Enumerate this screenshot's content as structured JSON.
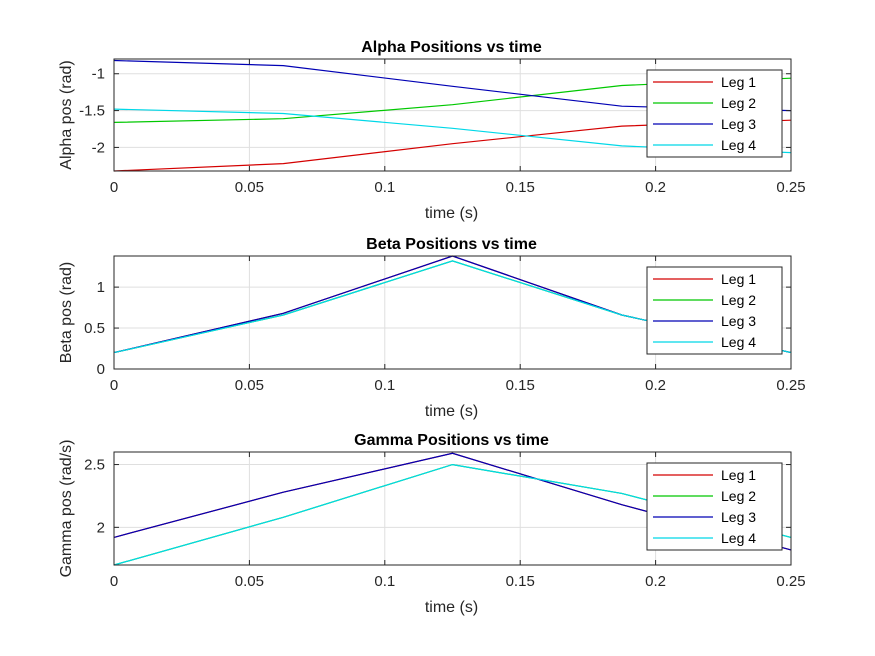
{
  "chart_data": [
    {
      "type": "line",
      "title": "Alpha Positions vs time",
      "xlabel": "time (s)",
      "ylabel": "Alpha pos (rad)",
      "xlim": [
        0,
        0.25
      ],
      "ylim": [
        -2.32,
        -0.8
      ],
      "xticks": [
        0,
        0.05,
        0.1,
        0.15,
        0.2,
        0.25
      ],
      "xticklabels": [
        "0",
        "0.05",
        "0.1",
        "0.15",
        "0.2",
        "0.25"
      ],
      "yticks": [
        -2,
        -1.5,
        -1
      ],
      "yticklabels": [
        "-2",
        "-1.5",
        "-1"
      ],
      "grid": true,
      "legend_position": "top-right",
      "series": [
        {
          "name": "Leg 1",
          "color": "#d40000",
          "x": [
            0,
            0.0625,
            0.125,
            0.1875,
            0.25
          ],
          "y": [
            -2.32,
            -2.22,
            -1.95,
            -1.71,
            -1.63
          ]
        },
        {
          "name": "Leg 2",
          "color": "#00c800",
          "x": [
            0,
            0.0625,
            0.125,
            0.1875,
            0.25
          ],
          "y": [
            -1.66,
            -1.61,
            -1.42,
            -1.16,
            -1.06
          ]
        },
        {
          "name": "Leg 3",
          "color": "#0000b4",
          "x": [
            0,
            0.0625,
            0.125,
            0.1875,
            0.25
          ],
          "y": [
            -0.82,
            -0.89,
            -1.17,
            -1.44,
            -1.5
          ]
        },
        {
          "name": "Leg 4",
          "color": "#00d8e8",
          "x": [
            0,
            0.0625,
            0.125,
            0.1875,
            0.25
          ],
          "y": [
            -1.48,
            -1.54,
            -1.74,
            -1.98,
            -2.07
          ]
        }
      ]
    },
    {
      "type": "line",
      "title": "Beta Positions vs time",
      "xlabel": "time (s)",
      "ylabel": "Beta pos (rad)",
      "xlim": [
        0,
        0.25
      ],
      "ylim": [
        0,
        1.38
      ],
      "xticks": [
        0,
        0.05,
        0.1,
        0.15,
        0.2,
        0.25
      ],
      "xticklabels": [
        "0",
        "0.05",
        "0.1",
        "0.15",
        "0.2",
        "0.25"
      ],
      "yticks": [
        0,
        0.5,
        1
      ],
      "yticklabels": [
        "0",
        "0.5",
        "1"
      ],
      "grid": true,
      "legend_position": "top-right",
      "series": [
        {
          "name": "Leg 1",
          "color": "#d40000",
          "x": [
            0,
            0.0625,
            0.125,
            0.1875,
            0.25
          ],
          "y": [
            0.2,
            0.68,
            1.38,
            0.66,
            0.2
          ]
        },
        {
          "name": "Leg 2",
          "color": "#00c800",
          "x": [
            0,
            0.0625,
            0.125,
            0.1875,
            0.25
          ],
          "y": [
            0.2,
            0.66,
            1.32,
            0.66,
            0.2
          ]
        },
        {
          "name": "Leg 3",
          "color": "#0000b4",
          "x": [
            0,
            0.0625,
            0.125,
            0.1875,
            0.25
          ],
          "y": [
            0.2,
            0.68,
            1.38,
            0.66,
            0.2
          ]
        },
        {
          "name": "Leg 4",
          "color": "#00d8e8",
          "x": [
            0,
            0.0625,
            0.125,
            0.1875,
            0.25
          ],
          "y": [
            0.2,
            0.66,
            1.32,
            0.66,
            0.2
          ]
        }
      ]
    },
    {
      "type": "line",
      "title": "Gamma Positions vs time",
      "xlabel": "time (s)",
      "ylabel": "Gamma pos (rad/s)",
      "xlim": [
        0,
        0.25
      ],
      "ylim": [
        1.7,
        2.6
      ],
      "xticks": [
        0,
        0.05,
        0.1,
        0.15,
        0.2,
        0.25
      ],
      "xticklabels": [
        "0",
        "0.05",
        "0.1",
        "0.15",
        "0.2",
        "0.25"
      ],
      "yticks": [
        2,
        2.5
      ],
      "yticklabels": [
        "2",
        "2.5"
      ],
      "grid": true,
      "legend_position": "top-right",
      "series": [
        {
          "name": "Leg 1",
          "color": "#d40000",
          "x": [
            0,
            0.0625,
            0.125,
            0.1875,
            0.25
          ],
          "y": [
            1.92,
            2.28,
            2.59,
            2.18,
            1.82
          ]
        },
        {
          "name": "Leg 2",
          "color": "#00c800",
          "x": [
            0,
            0.0625,
            0.125,
            0.1875,
            0.25
          ],
          "y": [
            1.7,
            2.08,
            2.5,
            2.27,
            1.92
          ]
        },
        {
          "name": "Leg 3",
          "color": "#0000b4",
          "x": [
            0,
            0.0625,
            0.125,
            0.1875,
            0.25
          ],
          "y": [
            1.92,
            2.28,
            2.59,
            2.18,
            1.82
          ]
        },
        {
          "name": "Leg 4",
          "color": "#00d8e8",
          "x": [
            0,
            0.0625,
            0.125,
            0.1875,
            0.25
          ],
          "y": [
            1.7,
            2.08,
            2.5,
            2.27,
            1.92
          ]
        }
      ]
    }
  ]
}
